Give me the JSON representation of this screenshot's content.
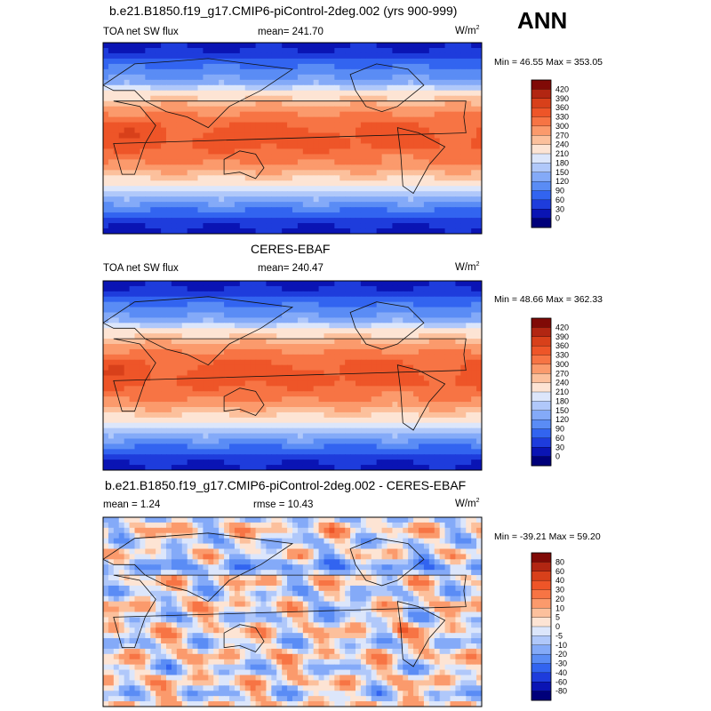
{
  "season": "ANN",
  "colors": {
    "abs_palette": [
      "#00007a",
      "#0a14b4",
      "#1e3cdc",
      "#3264f0",
      "#5a8cf5",
      "#84aaf8",
      "#b0c8fa",
      "#dce6fb",
      "#fde4d4",
      "#fcc09c",
      "#fb9a6c",
      "#f77444",
      "#ee5528",
      "#d8401a",
      "#b22612",
      "#800a06"
    ],
    "diff_palette": [
      "#00007a",
      "#0a14b4",
      "#1e3cdc",
      "#3264f0",
      "#5a8cf5",
      "#84aaf8",
      "#b0c8fa",
      "#dce6fb",
      "#fde4d4",
      "#fcc09c",
      "#fb9a6c",
      "#f77444",
      "#ee5528",
      "#d8401a",
      "#b22612",
      "#800a06"
    ]
  },
  "panels": [
    {
      "title": "b.e21.B1850.f19_g17.CMIP6-piControl-2deg.002 (yrs 900-999)",
      "left_label": "TOA net SW flux",
      "center_label": "mean= 241.70",
      "units": "W/m",
      "units_exp": "2",
      "minmax": "Min =  46.55 Max = 353.05",
      "kind": "abs",
      "chart_data": {
        "type": "heatmap",
        "variable": "TOA net SW flux",
        "units": "W/m2",
        "mean": 241.7,
        "min": 46.55,
        "max": 353.05,
        "colorbar_levels": [
          420,
          390,
          360,
          330,
          300,
          270,
          240,
          210,
          180,
          150,
          120,
          90,
          60,
          30,
          0
        ]
      }
    },
    {
      "title": "CERES-EBAF",
      "left_label": "TOA net SW flux",
      "center_label": "mean= 240.47",
      "units": "W/m",
      "units_exp": "2",
      "minmax": "Min =  48.66 Max = 362.33",
      "kind": "abs",
      "chart_data": {
        "type": "heatmap",
        "variable": "TOA net SW flux",
        "units": "W/m2",
        "mean": 240.47,
        "min": 48.66,
        "max": 362.33,
        "colorbar_levels": [
          420,
          390,
          360,
          330,
          300,
          270,
          240,
          210,
          180,
          150,
          120,
          90,
          60,
          30,
          0
        ]
      }
    },
    {
      "title": "b.e21.B1850.f19_g17.CMIP6-piControl-2deg.002 - CERES-EBAF",
      "left_label": "mean =   1.24",
      "center_label": "rmse =  10.43",
      "units": "W/m",
      "units_exp": "2",
      "minmax": "Min = -39.21 Max =  59.20",
      "kind": "diff",
      "chart_data": {
        "type": "heatmap",
        "variable": "difference",
        "units": "W/m2",
        "mean": 1.24,
        "rmse": 10.43,
        "min": -39.21,
        "max": 59.2,
        "colorbar_levels": [
          80,
          60,
          40,
          30,
          20,
          10,
          5,
          0,
          -5,
          -10,
          -20,
          -30,
          -40,
          -60,
          -80
        ]
      }
    }
  ]
}
